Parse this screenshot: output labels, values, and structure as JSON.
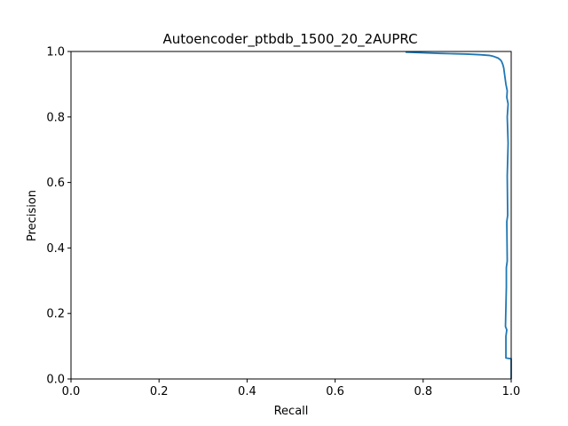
{
  "chart_data": {
    "type": "line",
    "title": "Autoencoder_ptbdb_1500_20_2AUPRC",
    "xlabel": "Recall",
    "ylabel": "Precision",
    "xlim": [
      0.0,
      1.0
    ],
    "ylim": [
      0.0,
      1.0
    ],
    "x_ticks": [
      "0.0",
      "0.2",
      "0.4",
      "0.6",
      "0.8",
      "1.0"
    ],
    "y_ticks": [
      "0.0",
      "0.2",
      "0.4",
      "0.6",
      "0.8",
      "1.0"
    ],
    "grid": false,
    "legend": "none",
    "series": [
      {
        "color": "#1f77b4",
        "x": [
          1.0,
          1.0,
          0.998,
          0.998,
          0.988,
          0.988,
          0.99,
          0.987,
          0.989,
          0.989,
          0.991,
          0.99,
          0.992,
          0.991,
          0.993,
          0.991,
          0.993,
          0.99,
          0.991,
          0.988,
          0.985,
          0.983,
          0.981,
          0.978,
          0.975,
          0.97,
          0.96,
          0.95,
          0.93,
          0.9,
          0.87,
          0.84,
          0.8,
          0.76
        ],
        "y": [
          0.0,
          0.062,
          0.062,
          0.062,
          0.064,
          0.13,
          0.15,
          0.16,
          0.28,
          0.34,
          0.36,
          0.48,
          0.5,
          0.62,
          0.72,
          0.8,
          0.84,
          0.86,
          0.88,
          0.9,
          0.93,
          0.95,
          0.96,
          0.97,
          0.975,
          0.98,
          0.985,
          0.988,
          0.99,
          0.992,
          0.993,
          0.994,
          0.996,
          0.998
        ]
      }
    ]
  }
}
